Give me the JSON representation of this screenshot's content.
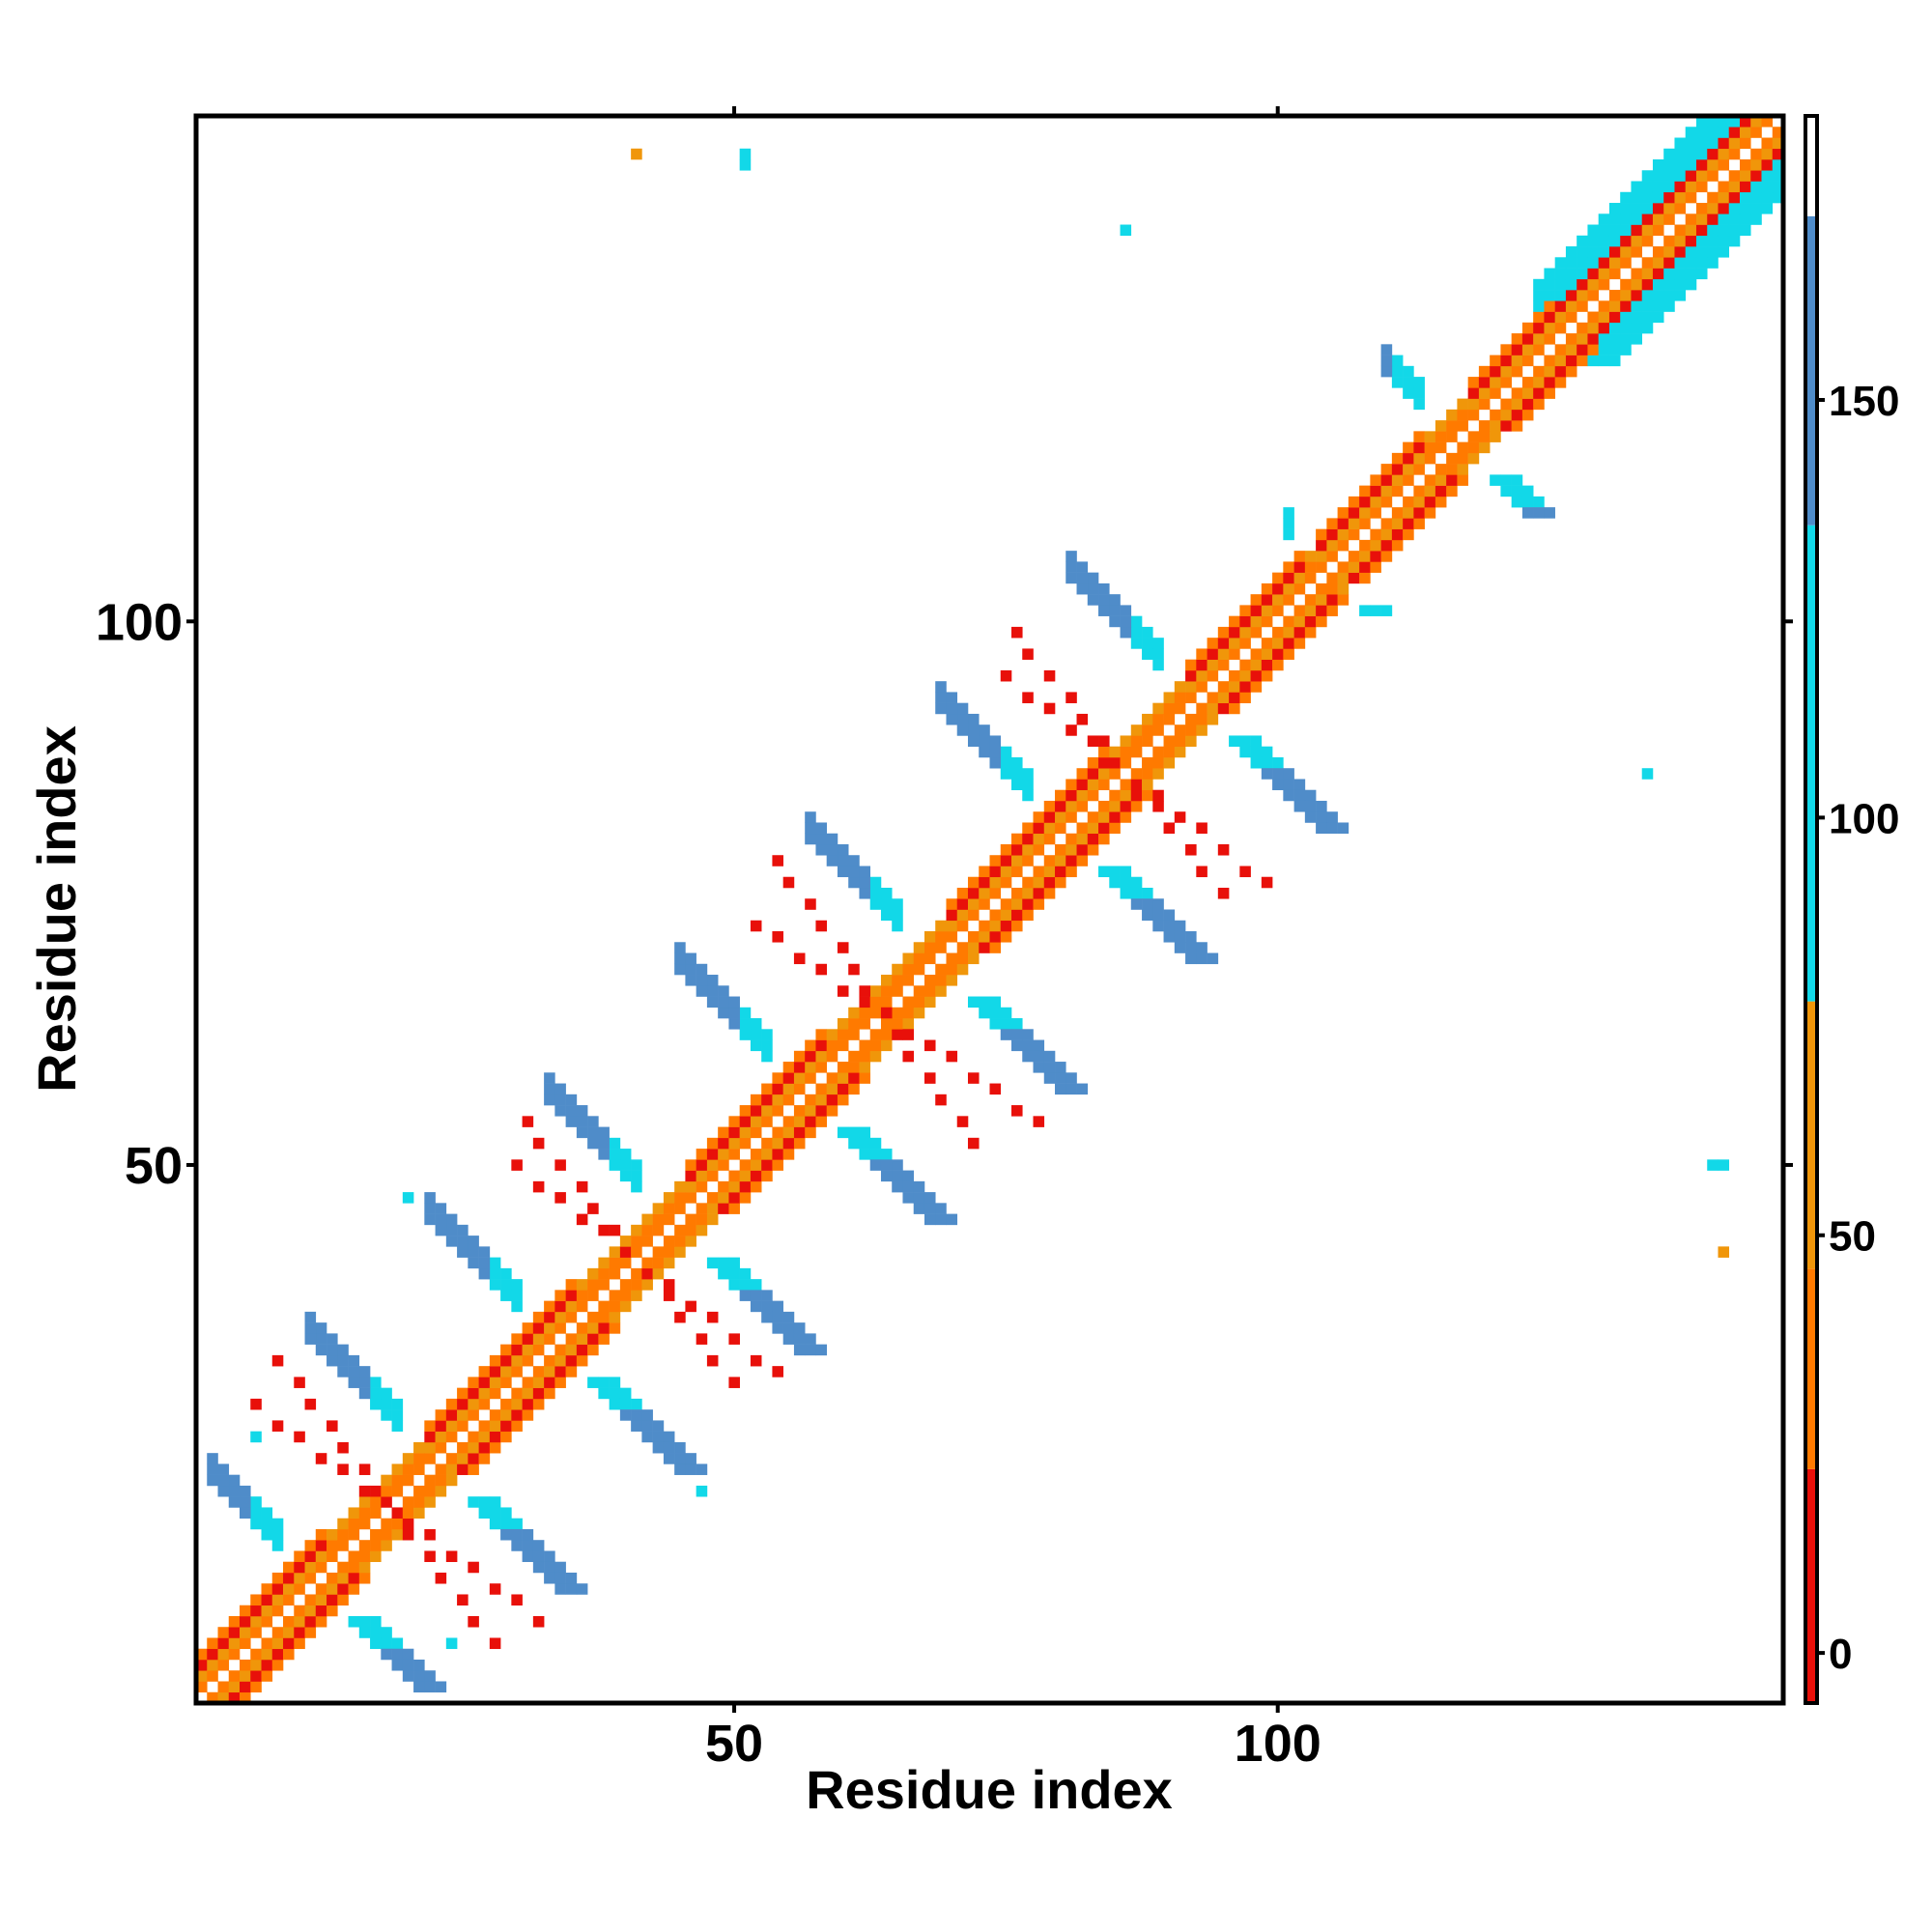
{
  "chart_data": {
    "type": "heatmap",
    "title": "",
    "xlabel": "Residue index",
    "ylabel": "Residue index",
    "xlim": [
      0.5,
      146.5
    ],
    "ylim": [
      0.5,
      146.5
    ],
    "x_ticks": [
      50,
      100
    ],
    "y_ticks": [
      50,
      100
    ],
    "colorbar": {
      "range": [
        -6,
        184
      ],
      "ticks": [
        0,
        50,
        100,
        150
      ],
      "bands": [
        {
          "from": -6,
          "to": 22,
          "color": "#e8100a"
        },
        {
          "from": 22,
          "to": 46,
          "color": "#ff7a00"
        },
        {
          "from": 46,
          "to": 78,
          "color": "#f0960a"
        },
        {
          "from": 78,
          "to": 135,
          "color": "#12d8e8"
        },
        {
          "from": 135,
          "to": 172,
          "color": "#4f8cc9"
        },
        {
          "from": 172,
          "to": 184,
          "color": "#ffffff"
        }
      ]
    },
    "grid": false,
    "palette": {
      "red": "#e8100a",
      "orange": "#ff7a00",
      "amber": "#f0960a",
      "cyan": "#12d8e8",
      "steel": "#4f8cc9"
    },
    "diagonal_segments": [
      [
        1,
        146
      ]
    ],
    "helix_segments": [
      [
        1,
        12
      ],
      [
        22,
        35
      ],
      [
        46,
        58
      ],
      [
        70,
        84
      ],
      [
        92,
        102
      ],
      [
        104,
        113
      ],
      [
        118,
        125
      ],
      [
        126,
        146
      ]
    ],
    "antiparallel_blocks": [
      {
        "center": [
          12,
          12
        ],
        "half_length": 10
      },
      {
        "center": [
          23,
          23
        ],
        "half_length": 12
      },
      {
        "center": [
          34,
          34
        ],
        "half_length": 12
      },
      {
        "center": [
          45,
          45
        ],
        "half_length": 12
      },
      {
        "center": [
          57,
          57
        ],
        "half_length": 12
      },
      {
        "center": [
          69,
          69
        ],
        "half_length": 12
      },
      {
        "center": [
          81,
          81
        ],
        "half_length": 12
      },
      {
        "center": [
          93,
          93
        ],
        "half_length": 12
      },
      {
        "center": [
          105,
          105
        ],
        "half_length": 4
      },
      {
        "center": [
          117,
          117
        ],
        "half_length": 7
      }
    ],
    "offdiagonal_bands": [
      {
        "from": [
          6,
          28
        ],
        "to": [
          32,
          8
        ],
        "color": "red"
      },
      {
        "from": [
          30,
          50
        ],
        "to": [
          55,
          30
        ],
        "color": "red"
      },
      {
        "from": [
          52,
          72
        ],
        "to": [
          78,
          54
        ],
        "color": "red"
      },
      {
        "from": [
          75,
          95
        ],
        "to": [
          100,
          75
        ],
        "color": "red"
      }
    ],
    "isolated_cells": [
      {
        "x": 41,
        "y": 143,
        "value": 60
      },
      {
        "x": 51,
        "y": 143,
        "value": 105
      },
      {
        "x": 51,
        "y": 142,
        "value": 105
      },
      {
        "x": 86,
        "y": 136,
        "value": 105
      },
      {
        "x": 134,
        "y": 86,
        "value": 105
      },
      {
        "x": 140,
        "y": 50,
        "value": 105
      },
      {
        "x": 141,
        "y": 50,
        "value": 105
      },
      {
        "x": 141,
        "y": 42,
        "value": 60
      },
      {
        "x": 6,
        "y": 25,
        "value": 105
      },
      {
        "x": 24,
        "y": 6,
        "value": 105
      },
      {
        "x": 20,
        "y": 47,
        "value": 105
      },
      {
        "x": 47,
        "y": 20,
        "value": 105
      }
    ]
  }
}
